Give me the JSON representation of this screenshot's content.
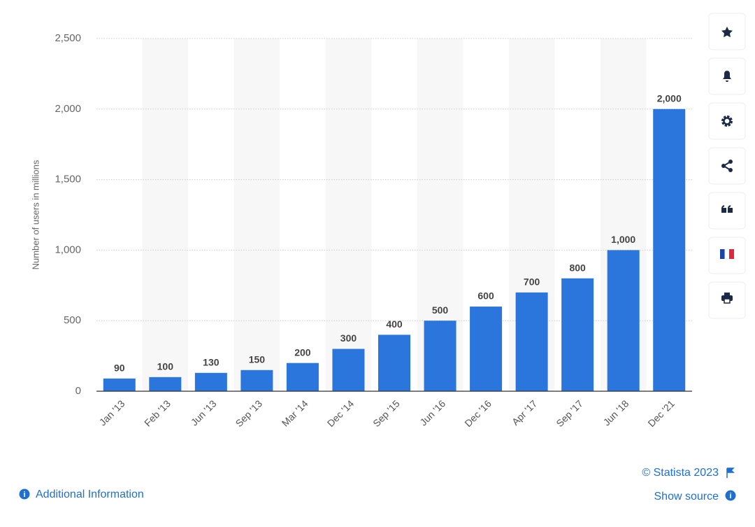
{
  "chart_data": {
    "type": "bar",
    "y_label": "Number of users in millions",
    "categories": [
      "Jan '13",
      "Feb '13",
      "Jun '13",
      "Sep '13",
      "Mar '14",
      "Dec '14",
      "Sep '15",
      "Jun '16",
      "Dec '16",
      "Apr '17",
      "Sep '17",
      "Jun '18",
      "Dec '21"
    ],
    "values": [
      90,
      100,
      130,
      150,
      200,
      300,
      400,
      500,
      600,
      700,
      800,
      1000,
      2000
    ],
    "value_labels": [
      "90",
      "100",
      "130",
      "150",
      "200",
      "300",
      "400",
      "500",
      "600",
      "700",
      "800",
      "1,000",
      "2,000"
    ],
    "color": "#2a76dd",
    "ylim": [
      0,
      2500
    ],
    "yticks": [
      0,
      500,
      {
        "value": 1000,
        "label": "1,000"
      },
      {
        "value": 1500,
        "label": "1,500"
      },
      {
        "value": 2000,
        "label": "2,000"
      },
      {
        "value": 2500,
        "label": "2,500"
      }
    ],
    "grid": true
  },
  "footer": {
    "copyright": "© Statista 2023",
    "show_source": "Show source",
    "additional_info": "Additional Information"
  }
}
